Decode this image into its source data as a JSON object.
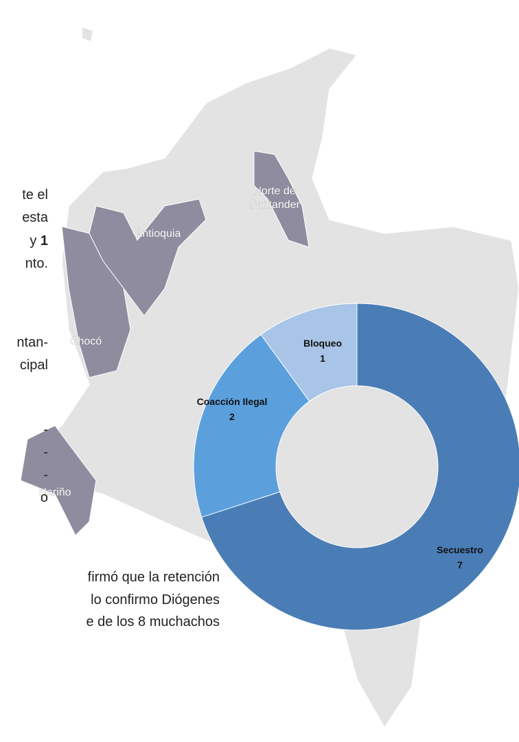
{
  "map": {
    "labels": [
      "Norte de Santander",
      "Antioquia",
      "Chocó",
      "Nariño"
    ]
  },
  "text_fragments": {
    "left": [
      "te el",
      "esta",
      "y ",
      "1",
      "nto.",
      "ntan-",
      "cipal",
      "-",
      "-",
      "-",
      "o"
    ],
    "bottom": [
      "firmó que la retención",
      "lo confirmo Diógenes",
      "e de los 8 muchachos"
    ]
  },
  "chart_data": {
    "type": "donut",
    "categories": [
      "Secuestro",
      "Coacción  Ilegal",
      "Bloqueo"
    ],
    "values": [
      7,
      2,
      1
    ],
    "colors": [
      "#4a7db5",
      "#5ba0dd",
      "#a8c4e6"
    ]
  }
}
